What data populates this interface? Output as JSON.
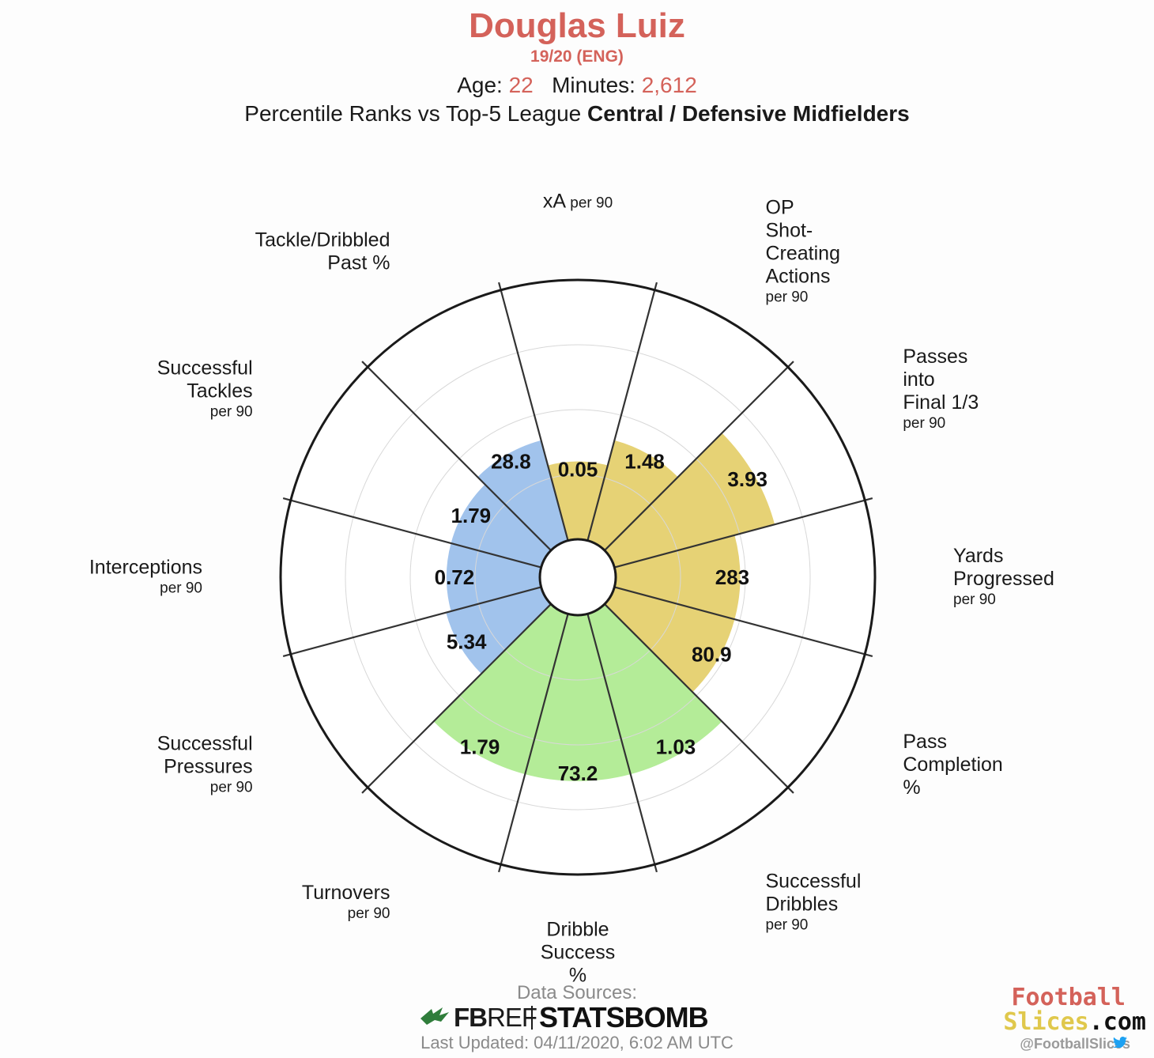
{
  "header": {
    "player_name": "Douglas Luiz",
    "season": "19/20 (ENG)",
    "age_label": "Age:",
    "age_value": "22",
    "minutes_label": "Minutes:",
    "minutes_value": "2,612",
    "subtitle_prefix": "Percentile Ranks vs Top-5 League",
    "subtitle_group": "Central / Defensive Midfielders"
  },
  "chart_data": {
    "type": "radar",
    "axis_scale": "percentile rank, 0–100",
    "grid": true,
    "group_colors": {
      "defending": "#a1c3ec",
      "attacking": "#e6d275",
      "possession": "#b4ec98"
    },
    "metrics": [
      {
        "label": [
          "xA"
        ],
        "sub": "per 90",
        "inline_sub": true,
        "value_label": "0.05",
        "percentile": 30,
        "group": "attacking"
      },
      {
        "label": [
          "OP",
          "Shot-",
          "Creating",
          "Actions"
        ],
        "sub": "per 90",
        "value_label": "1.48",
        "percentile": 40,
        "group": "attacking"
      },
      {
        "label": [
          "Passes",
          "into",
          "Final 1/3"
        ],
        "sub": "per 90",
        "value_label": "3.93",
        "percentile": 64,
        "group": "attacking"
      },
      {
        "label": [
          "Yards",
          "Progressed"
        ],
        "sub": "per 90",
        "value_label": "283",
        "percentile": 48,
        "group": "attacking"
      },
      {
        "label": [
          "Pass",
          "Completion",
          "%"
        ],
        "sub": "",
        "value_label": "80.9",
        "percentile": 48,
        "group": "attacking"
      },
      {
        "label": [
          "Successful",
          "Dribbles"
        ],
        "sub": "per 90",
        "value_label": "1.03",
        "percentile": 64,
        "group": "possession"
      },
      {
        "label": [
          "Dribble",
          "Success",
          "%"
        ],
        "sub": "",
        "value_label": "73.2",
        "percentile": 64,
        "group": "possession"
      },
      {
        "label": [
          "Turnovers"
        ],
        "sub": "per 90",
        "value_label": "1.79",
        "percentile": 64,
        "group": "possession"
      },
      {
        "label": [
          "Successful",
          "Pressures"
        ],
        "sub": "per 90",
        "value_label": "5.34",
        "percentile": 38,
        "group": "defending"
      },
      {
        "label": [
          "Interceptions"
        ],
        "sub": "per 90",
        "value_label": "0.72",
        "percentile": 36,
        "group": "defending"
      },
      {
        "label": [
          "Successful",
          "Tackles"
        ],
        "sub": "per 90",
        "value_label": "1.79",
        "percentile": 36,
        "group": "defending"
      },
      {
        "label": [
          "Tackle/Dribbled",
          "Past %"
        ],
        "sub": "",
        "value_label": "28.8",
        "percentile": 40,
        "group": "defending"
      }
    ]
  },
  "footer": {
    "sources_label": "Data Sources:",
    "fbref_a": "FB",
    "fbref_b": "REF",
    "statsbomb": "STATSBOMB",
    "last_updated": "Last Updated: 04/11/2020, 6:02 AM UTC"
  },
  "brand": {
    "line1": "Football",
    "line2a": "Slices",
    "line2b": ".com",
    "handle": "@FootballSlices"
  }
}
